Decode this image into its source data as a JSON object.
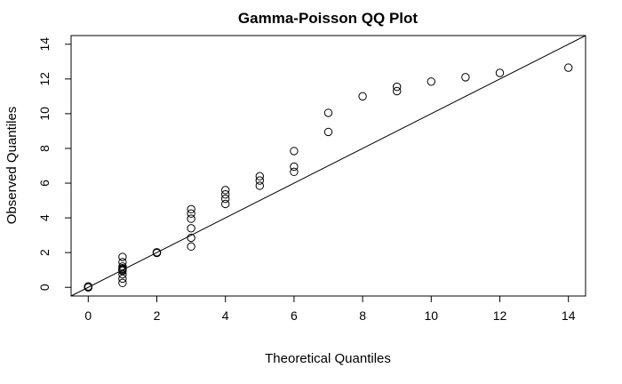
{
  "chart_data": {
    "type": "scatter",
    "title": "Gamma-Poisson QQ Plot",
    "xlabel": "Theoretical Quantiles",
    "ylabel": "Observed Quantiles",
    "xlim": [
      -0.5,
      14.5
    ],
    "ylim": [
      -0.5,
      14.5
    ],
    "x_ticks": [
      0,
      2,
      4,
      6,
      8,
      10,
      12,
      14
    ],
    "y_ticks": [
      0,
      2,
      4,
      6,
      8,
      10,
      12,
      14
    ],
    "x_tick_labels": [
      "0",
      "2",
      "4",
      "6",
      "8",
      "10",
      "12",
      "14"
    ],
    "y_tick_labels": [
      "0",
      "2",
      "4",
      "6",
      "8",
      "10",
      "12",
      "14"
    ],
    "grid": false,
    "marker": "open-circle",
    "reference_line": {
      "slope": 1,
      "intercept": 0
    },
    "points": [
      {
        "x": 0,
        "y": 0
      },
      {
        "x": 0,
        "y": 0
      },
      {
        "x": 0,
        "y": 0
      },
      {
        "x": 0,
        "y": 0
      },
      {
        "x": 0,
        "y": 0.02
      },
      {
        "x": 0,
        "y": 0.03
      },
      {
        "x": 0,
        "y": 0.05
      },
      {
        "x": 1,
        "y": 0.25
      },
      {
        "x": 1,
        "y": 0.5
      },
      {
        "x": 1,
        "y": 0.75
      },
      {
        "x": 1,
        "y": 0.95
      },
      {
        "x": 1,
        "y": 1.0
      },
      {
        "x": 1,
        "y": 1.05
      },
      {
        "x": 1,
        "y": 1.1
      },
      {
        "x": 1,
        "y": 1.2
      },
      {
        "x": 1,
        "y": 1.45
      },
      {
        "x": 1,
        "y": 1.75
      },
      {
        "x": 2,
        "y": 1.98
      },
      {
        "x": 2,
        "y": 2.0
      },
      {
        "x": 2,
        "y": 2.02
      },
      {
        "x": 3,
        "y": 2.35
      },
      {
        "x": 3,
        "y": 2.85
      },
      {
        "x": 3,
        "y": 3.4
      },
      {
        "x": 3,
        "y": 3.95
      },
      {
        "x": 3,
        "y": 4.25
      },
      {
        "x": 3,
        "y": 4.5
      },
      {
        "x": 4,
        "y": 4.8
      },
      {
        "x": 4,
        "y": 5.1
      },
      {
        "x": 4,
        "y": 5.35
      },
      {
        "x": 4,
        "y": 5.6
      },
      {
        "x": 5,
        "y": 5.85
      },
      {
        "x": 5,
        "y": 6.15
      },
      {
        "x": 5,
        "y": 6.4
      },
      {
        "x": 6,
        "y": 6.65
      },
      {
        "x": 6,
        "y": 6.95
      },
      {
        "x": 6,
        "y": 7.85
      },
      {
        "x": 7,
        "y": 8.95
      },
      {
        "x": 7,
        "y": 10.05
      },
      {
        "x": 8,
        "y": 11.0
      },
      {
        "x": 9,
        "y": 11.3
      },
      {
        "x": 9,
        "y": 11.55
      },
      {
        "x": 10,
        "y": 11.85
      },
      {
        "x": 11,
        "y": 12.1
      },
      {
        "x": 12,
        "y": 12.35
      },
      {
        "x": 14,
        "y": 12.65
      }
    ]
  }
}
